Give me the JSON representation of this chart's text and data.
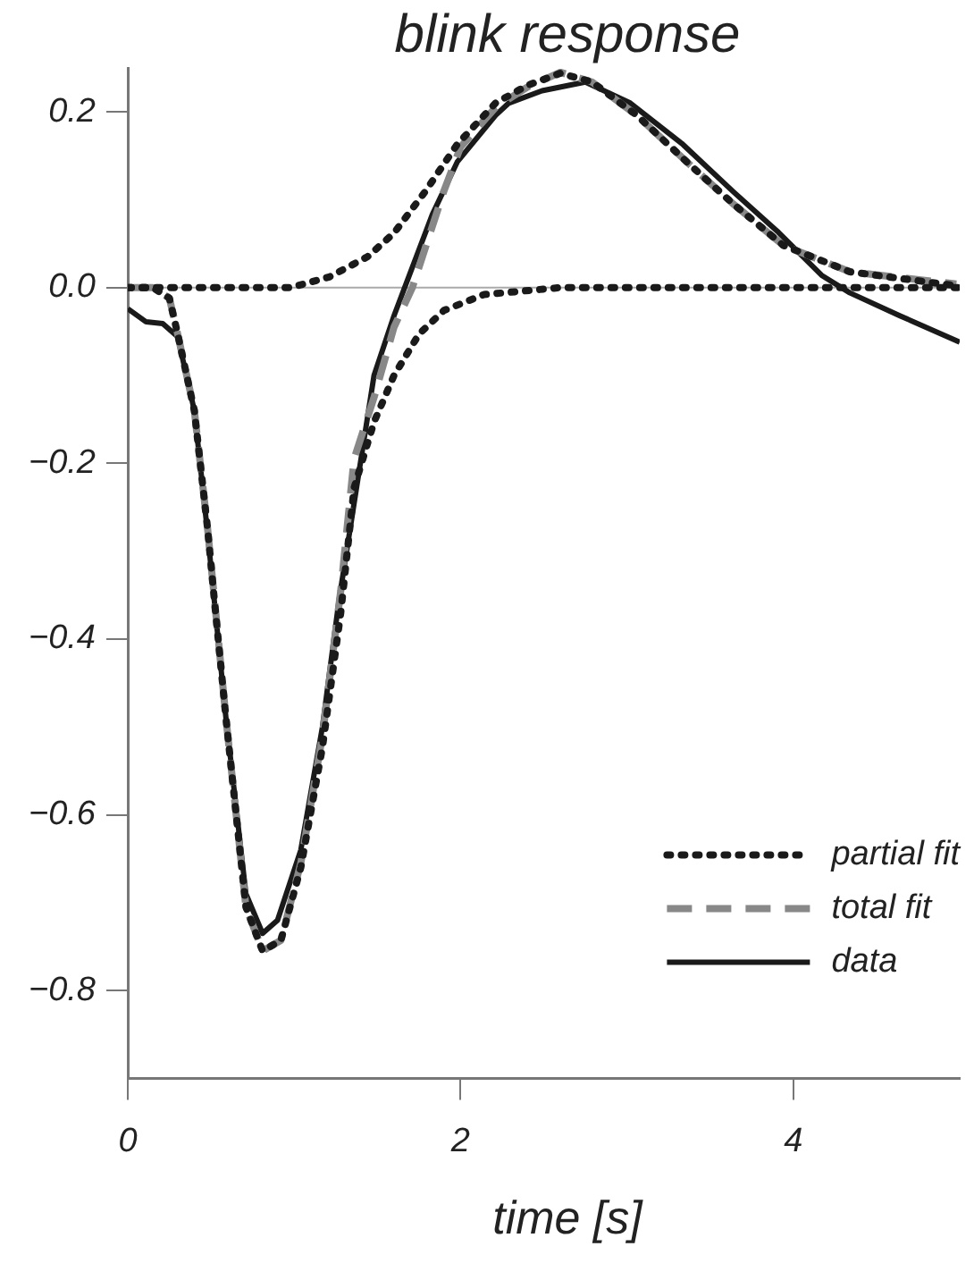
{
  "chart_data": {
    "type": "line",
    "title": "blink response",
    "xlabel": "time [s]",
    "xlim": [
      0,
      5
    ],
    "xticks": [
      0,
      2,
      4
    ],
    "ylim": [
      -0.9,
      0.25
    ],
    "yticks": [
      {
        "value": 0.2,
        "label": "0.2"
      },
      {
        "value": 0,
        "label": "0.0"
      },
      {
        "value": -0.2,
        "label": "−0.2"
      },
      {
        "value": -0.4,
        "label": "−0.4"
      },
      {
        "value": -0.6,
        "label": "−0.6"
      },
      {
        "value": -0.8,
        "label": "−0.8"
      }
    ],
    "grid": false,
    "legend": "bottom right",
    "marker": "none",
    "ref_lines": [
      {
        "axis": "y",
        "value": 0,
        "color": "#aaaaaa"
      }
    ],
    "series": [
      {
        "name": "partial fit",
        "color": "#1a1a1a",
        "line_style": "dotted",
        "x": [
          0,
          0.15,
          0.25,
          0.3,
          0.4,
          0.48,
          0.52,
          0.59,
          0.71,
          0.81,
          0.92,
          1.04,
          1.17,
          1.28,
          1.36,
          1.48,
          1.6,
          1.75,
          1.9,
          2.14,
          2.6,
          5
        ],
        "values": [
          0,
          0,
          -0.012,
          -0.053,
          -0.14,
          -0.275,
          -0.355,
          -0.49,
          -0.705,
          -0.755,
          -0.743,
          -0.66,
          -0.523,
          -0.37,
          -0.228,
          -0.153,
          -0.1,
          -0.053,
          -0.026,
          -0.008,
          0,
          0
        ]
      },
      {
        "color": "#1a1a1a",
        "line_style": "dotted",
        "x": [
          0,
          0.98,
          1.21,
          1.44,
          1.6,
          1.79,
          1.98,
          2.21,
          2.4,
          2.6,
          2.79,
          3.06,
          3.36,
          3.64,
          3.94,
          4.34,
          4.98
        ],
        "values": [
          0,
          0,
          0.012,
          0.035,
          0.062,
          0.11,
          0.163,
          0.21,
          0.23,
          0.244,
          0.234,
          0.196,
          0.143,
          0.095,
          0.048,
          0.018,
          0.002
        ]
      },
      {
        "name": "total fit",
        "color": "#888888",
        "line_style": "dashed",
        "x": [
          0,
          0.15,
          0.25,
          0.3,
          0.4,
          0.48,
          0.59,
          0.71,
          0.81,
          0.92,
          1.04,
          1.17,
          1.28,
          1.36,
          1.48,
          1.6,
          1.71,
          1.9,
          2.0,
          2.21,
          2.4,
          2.6,
          2.79,
          3.06,
          3.36,
          3.64,
          3.94,
          4.34,
          4.98
        ],
        "values": [
          0,
          0,
          -0.012,
          -0.053,
          -0.14,
          -0.275,
          -0.49,
          -0.705,
          -0.755,
          -0.743,
          -0.655,
          -0.51,
          -0.345,
          -0.195,
          -0.125,
          -0.045,
          0,
          0.11,
          0.16,
          0.205,
          0.228,
          0.245,
          0.234,
          0.196,
          0.143,
          0.095,
          0.048,
          0.018,
          0.004
        ]
      },
      {
        "name": "data",
        "color": "#1a1a1a",
        "line_style": "solid",
        "x": [
          0,
          0.11,
          0.21,
          0.3,
          0.4,
          0.48,
          0.59,
          0.71,
          0.81,
          0.9,
          1.04,
          1.17,
          1.27,
          1.48,
          1.6,
          1.68,
          1.83,
          1.98,
          2.21,
          2.29,
          2.49,
          2.75,
          3.02,
          3.33,
          3.64,
          3.91,
          4.17,
          4.34,
          4.64,
          5.0
        ],
        "values": [
          -0.024,
          -0.039,
          -0.041,
          -0.056,
          -0.14,
          -0.28,
          -0.49,
          -0.69,
          -0.735,
          -0.72,
          -0.64,
          -0.5,
          -0.355,
          -0.1,
          -0.032,
          0.008,
          0.083,
          0.143,
          0.196,
          0.21,
          0.224,
          0.234,
          0.21,
          0.164,
          0.109,
          0.063,
          0.014,
          -0.006,
          -0.032,
          -0.062
        ]
      }
    ]
  }
}
